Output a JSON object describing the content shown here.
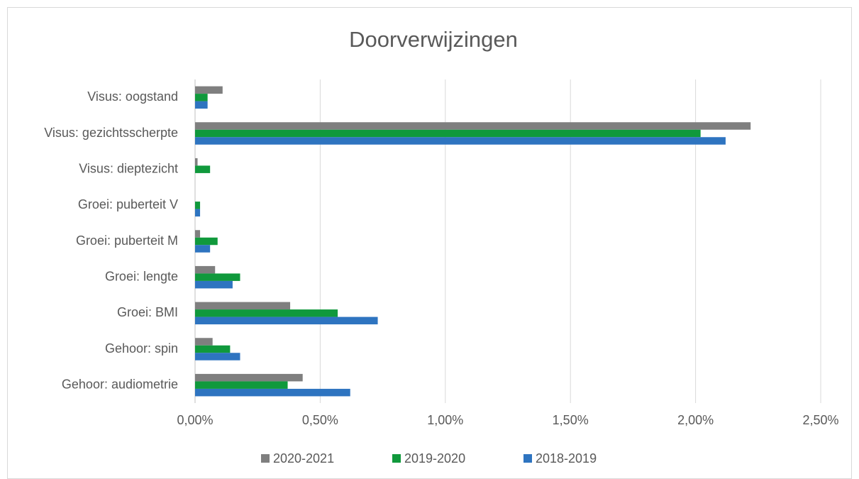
{
  "chart_data": {
    "type": "bar",
    "orientation": "horizontal",
    "title": "Doorverwijzingen",
    "categories": [
      "Visus: oogstand",
      "Visus: gezichtsscherpte",
      "Visus: dieptezicht",
      "Groei: puberteit V",
      "Groei: puberteit M",
      "Groei: lengte",
      "Groei: BMI",
      "Gehoor: spin",
      "Gehoor: audiometrie"
    ],
    "series": [
      {
        "name": "2020-2021",
        "color": "#7f7f7f",
        "values": [
          0.11,
          2.22,
          0.01,
          0,
          0.02,
          0.08,
          0.38,
          0.07,
          0.43
        ]
      },
      {
        "name": "2019-2020",
        "color": "#10993c",
        "values": [
          0.05,
          2.02,
          0.06,
          0.02,
          0.09,
          0.18,
          0.57,
          0.14,
          0.37
        ]
      },
      {
        "name": "2018-2019",
        "color": "#2e74c0",
        "values": [
          0.05,
          2.12,
          0,
          0.02,
          0.06,
          0.15,
          0.73,
          0.18,
          0.62
        ]
      }
    ],
    "xlim": [
      0,
      2.5
    ],
    "xticks": [
      {
        "value": 0,
        "label": "0,00%"
      },
      {
        "value": 0.5,
        "label": "0,50%"
      },
      {
        "value": 1,
        "label": "1,00%"
      },
      {
        "value": 1.5,
        "label": "1,50%"
      },
      {
        "value": 2,
        "label": "2,00%"
      },
      {
        "value": 2.5,
        "label": "2,50%"
      }
    ],
    "grid": true,
    "legend": "bottom"
  }
}
